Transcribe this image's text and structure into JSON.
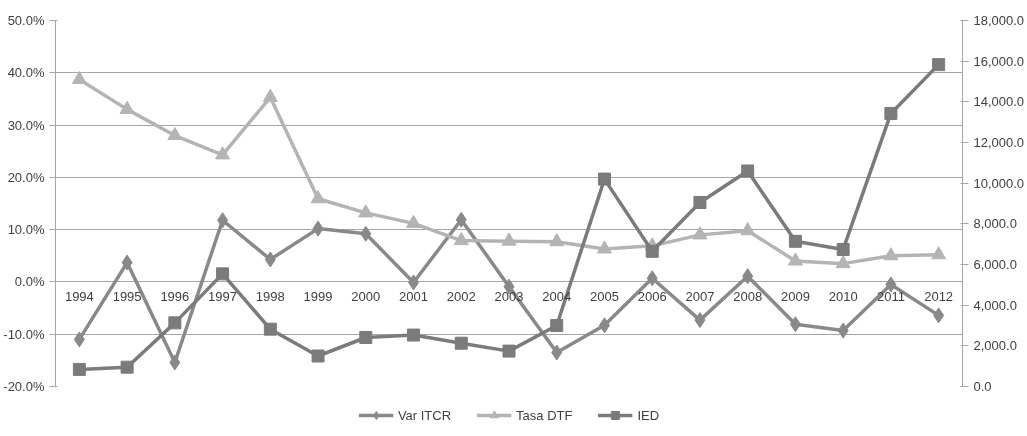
{
  "chart_data": {
    "type": "line",
    "categories": [
      "1994",
      "1995",
      "1996",
      "1997",
      "1998",
      "1999",
      "2000",
      "2001",
      "2002",
      "2003",
      "2004",
      "2005",
      "2006",
      "2007",
      "2008",
      "2009",
      "2010",
      "2011",
      "2012"
    ],
    "series": [
      {
        "name": "Var ITCR",
        "color": "#898989",
        "marker": "diamond",
        "values": [
          -11.0,
          3.7,
          -15.4,
          11.8,
          4.3,
          10.2,
          9.2,
          -0.1,
          11.9,
          -0.9,
          -13.5,
          -8.3,
          0.7,
          -7.3,
          1.1,
          -8.1,
          -9.3,
          -0.5,
          -6.4
        ]
      },
      {
        "name": "Tasa DTF",
        "color": "#b4b4b4",
        "marker": "triangle",
        "values": [
          38.7,
          33.0,
          28.0,
          24.3,
          35.3,
          15.9,
          13.2,
          11.2,
          7.9,
          7.8,
          7.7,
          6.3,
          6.9,
          9.0,
          9.8,
          4.0,
          3.5,
          5.0,
          5.2
        ]
      },
      {
        "name": "IED",
        "color": "#7b7b7b",
        "marker": "square",
        "axis": "y2",
        "values": [
          840,
          950,
          3130,
          5540,
          2820,
          1500,
          2410,
          2530,
          2130,
          1740,
          3000,
          10200,
          6650,
          9050,
          10600,
          7140,
          6740,
          13430,
          15830
        ]
      }
    ],
    "ylim": [
      -20,
      50
    ],
    "yticks": [
      {
        "value": -20,
        "label": "-20.0%"
      },
      {
        "value": -10,
        "label": "-10.0%"
      },
      {
        "value": 0,
        "label": "0.0%"
      },
      {
        "value": 10,
        "label": "10.0%"
      },
      {
        "value": 20,
        "label": "20.0%"
      },
      {
        "value": 30,
        "label": "30.0%"
      },
      {
        "value": 40,
        "label": "40.0%"
      },
      {
        "value": 50,
        "label": "50.0%"
      }
    ],
    "y2lim": [
      0,
      18000
    ],
    "y2ticks": [
      {
        "value": 0,
        "label": "0.0"
      },
      {
        "value": 2000,
        "label": "2,000.0"
      },
      {
        "value": 4000,
        "label": "4,000.0"
      },
      {
        "value": 6000,
        "label": "6,000.0"
      },
      {
        "value": 8000,
        "label": "8,000.0"
      },
      {
        "value": 10000,
        "label": "10,000.0"
      },
      {
        "value": 12000,
        "label": "12,000.0"
      },
      {
        "value": 14000,
        "label": "14,000.0"
      },
      {
        "value": 16000,
        "label": "16,000.0"
      },
      {
        "value": 18000,
        "label": "18,000.0"
      }
    ],
    "grid": "y",
    "legend": "bottom",
    "line_style": "solid"
  }
}
